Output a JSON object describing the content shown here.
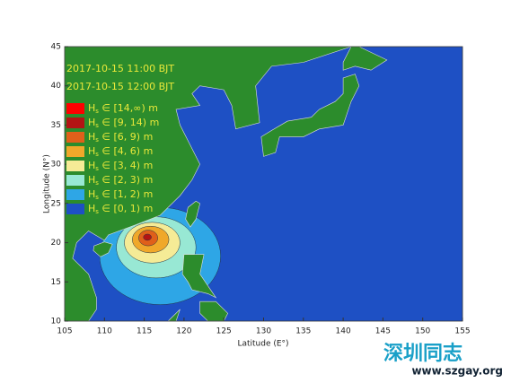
{
  "chart_data": {
    "type": "map",
    "annotations": [
      "2017-10-15 11:00 BJT",
      "2017-10-15 12:00 BJT"
    ],
    "xlabel": "Latitude (E°)",
    "ylabel": "Longitude (N°)",
    "xlim": [
      105,
      155
    ],
    "xticks": [
      105,
      110,
      115,
      120,
      125,
      130,
      135,
      140,
      145,
      150,
      155
    ],
    "ylim": [
      10,
      45
    ],
    "yticks": [
      10,
      15,
      20,
      25,
      30,
      35,
      40,
      45
    ],
    "legend": [
      {
        "symbol": "H",
        "sub": "s",
        "range": " ∈ [14,∞) m",
        "color": "#ff0000"
      },
      {
        "symbol": "H",
        "sub": "s",
        "range": " ∈ [9, 14) m",
        "color": "#b31414"
      },
      {
        "symbol": "H",
        "sub": "s",
        "range": " ∈ [6, 9) m",
        "color": "#e0601a"
      },
      {
        "symbol": "H",
        "sub": "s",
        "range": " ∈ [4, 6) m",
        "color": "#f0a82a"
      },
      {
        "symbol": "H",
        "sub": "s",
        "range": " ∈ [3, 4) m",
        "color": "#f5eb96"
      },
      {
        "symbol": "H",
        "sub": "s",
        "range": " ∈ [2, 3) m",
        "color": "#98e8d4"
      },
      {
        "symbol": "H",
        "sub": "s",
        "range": " ∈ [1, 2) m",
        "color": "#2ea6e6"
      },
      {
        "symbol": "H",
        "sub": "s",
        "range": " ∈ [0, 1) m",
        "color": "#1e50c4"
      }
    ],
    "watermark": [
      "深圳同志",
      "www.szgay.org"
    ]
  }
}
